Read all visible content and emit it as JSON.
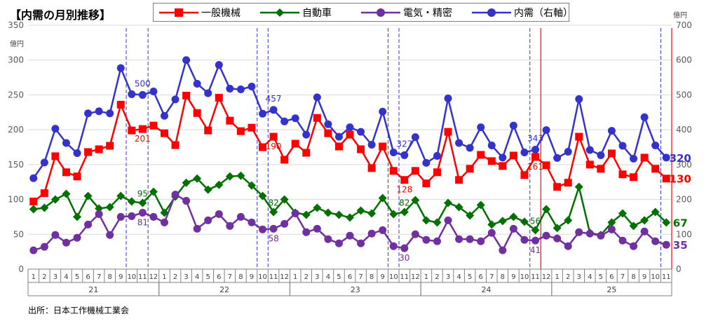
{
  "title": "【内需の月別推移】",
  "source": "出所：日本工作機械工業会",
  "colors": {
    "general_machinery": "#ff0000",
    "automobile": "#007000",
    "electric_precision": "#7030a0",
    "domestic_total": "#3333cc",
    "red_marker_line": "#ff0000",
    "dashed_marker_line": "#3333cc"
  },
  "chart_data": {
    "type": "line",
    "left_axis": {
      "unit": "億円",
      "ticks": [
        "0",
        "50",
        "100",
        "150",
        "200",
        "250",
        "300",
        "350"
      ],
      "ylim": [
        0,
        350
      ]
    },
    "right_axis": {
      "unit": "億円",
      "ticks": [
        "0",
        "100",
        "200",
        "300",
        "400",
        "500",
        "600",
        "700"
      ],
      "ylim": [
        0,
        700
      ]
    },
    "month_labels": [
      "1",
      "2",
      "3",
      "4",
      "5",
      "6",
      "7",
      "8",
      "9",
      "10",
      "11",
      "12",
      "1",
      "2",
      "3",
      "4",
      "5",
      "6",
      "7",
      "8",
      "9",
      "10",
      "11",
      "12",
      "1",
      "2",
      "3",
      "4",
      "5",
      "6",
      "7",
      "8",
      "9",
      "10",
      "11",
      "12",
      "1",
      "2",
      "3",
      "4",
      "5",
      "6",
      "7",
      "8",
      "9",
      "10",
      "11",
      "12",
      "1",
      "2",
      "3",
      "4",
      "5",
      "6",
      "7",
      "8",
      "9",
      "10",
      "11"
    ],
    "year_labels": [
      {
        "label": "21",
        "start": 0,
        "count": 12
      },
      {
        "label": "22",
        "start": 12,
        "count": 12
      },
      {
        "label": "23",
        "start": 24,
        "count": 12
      },
      {
        "label": "24",
        "start": 36,
        "count": 12
      },
      {
        "label": "25",
        "start": 48,
        "count": 11
      }
    ],
    "series": [
      {
        "name": "一般機械",
        "axis": "left",
        "marker": "square",
        "color": "#ff0000",
        "values": [
          97,
          109,
          162,
          139,
          133,
          168,
          172,
          177,
          236,
          199,
          201,
          206,
          195,
          178,
          249,
          224,
          199,
          246,
          213,
          198,
          203,
          175,
          190,
          157,
          180,
          167,
          217,
          195,
          176,
          193,
          172,
          145,
          176,
          141,
          128,
          141,
          123,
          139,
          197,
          128,
          144,
          164,
          155,
          148,
          163,
          135,
          161,
          149,
          118,
          124,
          190,
          150,
          144,
          166,
          136,
          132,
          160,
          144,
          130
        ],
        "annotations": [
          {
            "index": 10,
            "label": "201"
          },
          {
            "index": 22,
            "label": "190"
          },
          {
            "index": 34,
            "label": "128"
          },
          {
            "index": 46,
            "label": "161"
          },
          {
            "index": 58,
            "label": "130"
          }
        ]
      },
      {
        "name": "自動車",
        "axis": "left",
        "marker": "diamond",
        "color": "#007000",
        "values": [
          86,
          88,
          100,
          108,
          75,
          105,
          87,
          89,
          105,
          97,
          95,
          111,
          81,
          104,
          124,
          130,
          114,
          121,
          133,
          134,
          120,
          105,
          82,
          100,
          81,
          78,
          88,
          81,
          78,
          74,
          84,
          80,
          102,
          79,
          82,
          99,
          70,
          67,
          95,
          89,
          77,
          92,
          64,
          69,
          75,
          68,
          56,
          86,
          59,
          70,
          118,
          52,
          49,
          67,
          80,
          62,
          70,
          82,
          67
        ],
        "annotations": [
          {
            "index": 10,
            "label": "95"
          },
          {
            "index": 22,
            "label": "82"
          },
          {
            "index": 34,
            "label": "82"
          },
          {
            "index": 46,
            "label": "56"
          },
          {
            "index": 58,
            "label": "67"
          }
        ]
      },
      {
        "name": "電気・精密",
        "axis": "left",
        "marker": "circle",
        "color": "#7030a0",
        "values": [
          27,
          32,
          49,
          38,
          45,
          64,
          79,
          49,
          75,
          76,
          81,
          75,
          67,
          107,
          98,
          58,
          70,
          79,
          62,
          75,
          67,
          57,
          58,
          65,
          80,
          53,
          58,
          43,
          37,
          48,
          37,
          51,
          56,
          33,
          30,
          50,
          42,
          40,
          70,
          43,
          43,
          40,
          52,
          27,
          58,
          42,
          41,
          48,
          44,
          33,
          53,
          51,
          48,
          57,
          41,
          33,
          54,
          40,
          35
        ],
        "annotations": [
          {
            "index": 10,
            "label": "81"
          },
          {
            "index": 22,
            "label": "58"
          },
          {
            "index": 34,
            "label": "30"
          },
          {
            "index": 46,
            "label": "41"
          },
          {
            "index": 58,
            "label": "35"
          }
        ]
      },
      {
        "name": "内需（右軸）",
        "axis": "right",
        "marker": "circle",
        "color": "#3333cc",
        "values": [
          261,
          306,
          403,
          362,
          333,
          447,
          453,
          447,
          577,
          502,
          500,
          510,
          440,
          487,
          600,
          532,
          505,
          586,
          518,
          516,
          524,
          446,
          457,
          424,
          433,
          386,
          493,
          416,
          380,
          407,
          394,
          357,
          452,
          335,
          327,
          379,
          305,
          325,
          490,
          362,
          348,
          407,
          355,
          320,
          412,
          335,
          343,
          399,
          319,
          337,
          488,
          342,
          327,
          397,
          354,
          317,
          436,
          355,
          320
        ],
        "annotations": [
          {
            "index": 10,
            "label": "500"
          },
          {
            "index": 22,
            "label": "457"
          },
          {
            "index": 34,
            "label": "327"
          },
          {
            "index": 46,
            "label": "343"
          },
          {
            "index": 58,
            "label": "320"
          }
        ]
      }
    ],
    "blue_dashed_after_index": [
      8.5,
      10.5,
      20.5,
      21.5,
      32.5,
      33.5,
      45.5,
      57.5
    ],
    "red_solid_at_index": [
      46.5,
      58.5
    ],
    "legend_position": "top"
  }
}
